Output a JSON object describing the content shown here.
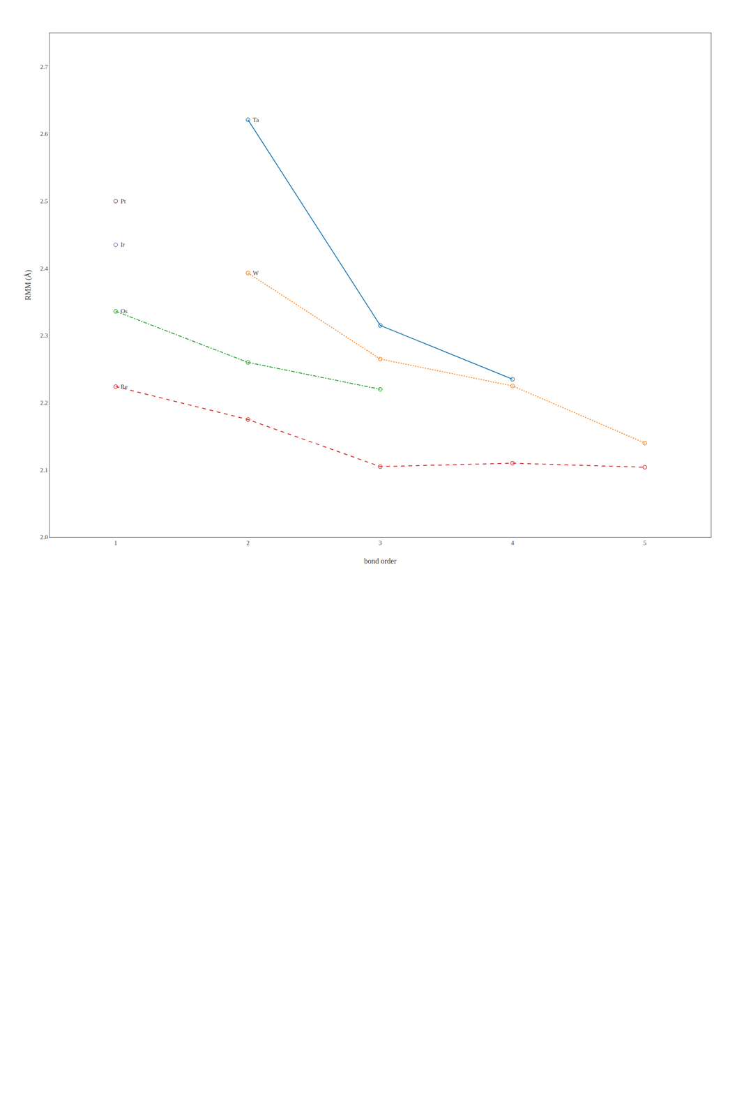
{
  "chart_data": {
    "type": "line",
    "xlabel": "bond order",
    "ylabel": "RMM (Å)",
    "xlim": [
      0.5,
      5.5
    ],
    "ylim": [
      2.0,
      2.75
    ],
    "xticks": [
      1,
      2,
      3,
      4,
      5
    ],
    "yticks": [
      {
        "value": 2.0,
        "label": "2.0"
      },
      2.1,
      2.2,
      2.3,
      2.4,
      2.5,
      2.6,
      2.7
    ],
    "grid": false,
    "marker": "circle-open",
    "series": [
      {
        "name": "Ta",
        "x": [
          2,
          3,
          4
        ],
        "values": [
          2.621,
          2.315,
          2.235
        ],
        "line_style": "solid"
      },
      {
        "name": "W",
        "x": [
          2,
          3,
          4,
          5
        ],
        "values": [
          2.393,
          2.265,
          2.225,
          2.14
        ],
        "line_style": "dotted"
      },
      {
        "name": "Os",
        "x": [
          1,
          2,
          3
        ],
        "values": [
          2.336,
          2.26,
          2.22
        ],
        "line_style": "dashdot"
      },
      {
        "name": "Re",
        "x": [
          1,
          2,
          3,
          4,
          5
        ],
        "values": [
          2.224,
          2.175,
          2.105,
          2.11,
          2.104
        ],
        "line_style": "dashed"
      },
      {
        "name": "Ir",
        "x": [
          1
        ],
        "values": [
          2.435
        ],
        "line_style": "none"
      },
      {
        "name": "Pt",
        "x": [
          1
        ],
        "values": [
          2.5
        ],
        "line_style": "none"
      }
    ]
  }
}
